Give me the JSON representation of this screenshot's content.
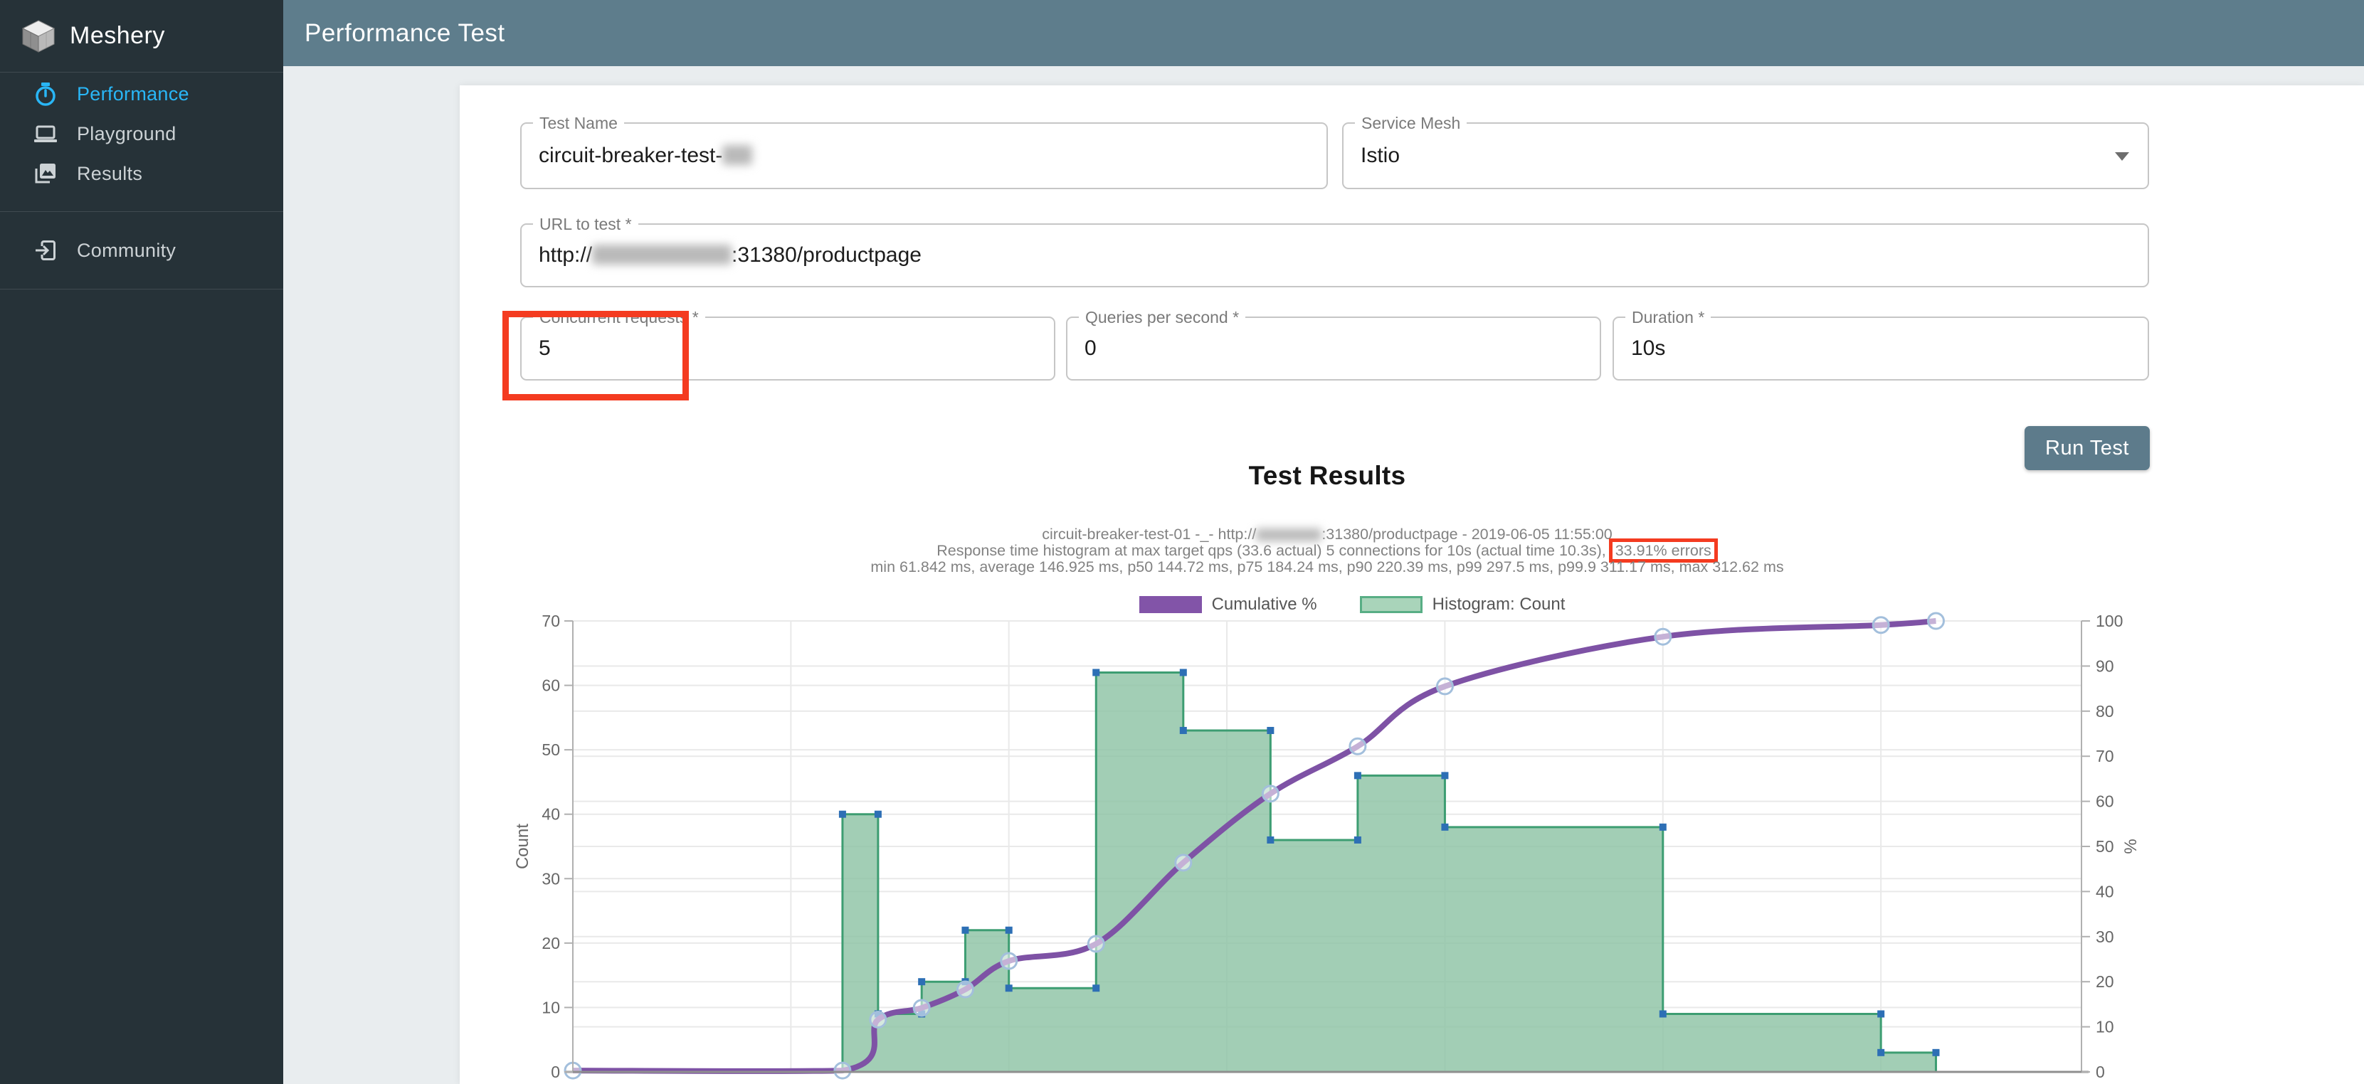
{
  "app": {
    "brand": "Meshery",
    "page_title": "Performance Test"
  },
  "sidebar": {
    "items": [
      {
        "label": "Performance",
        "active": true
      },
      {
        "label": "Playground",
        "active": false
      },
      {
        "label": "Results",
        "active": false
      },
      {
        "label": "Community",
        "active": false
      }
    ]
  },
  "header": {
    "icons": [
      "settings-gear",
      "notifications-bell",
      "user-avatar"
    ]
  },
  "form": {
    "test_name": {
      "label": "Test Name",
      "value_prefix": "circuit-breaker-test-",
      "value_suffix_redacted": true
    },
    "service_mesh": {
      "label": "Service Mesh",
      "value": "Istio"
    },
    "url": {
      "label": "URL to test *",
      "value_prefix": "http://",
      "host_redacted": true,
      "value_suffix": ":31380/productpage"
    },
    "concurrent_requests": {
      "label": "Concurrent requests *",
      "value": "5",
      "annotated": true
    },
    "queries_per_second": {
      "label": "Queries per second *",
      "value": "0"
    },
    "duration": {
      "label": "Duration *",
      "value": "10s"
    },
    "run_button_label": "Run Test"
  },
  "results": {
    "title": "Test Results",
    "summary_line1_prefix": "circuit-breaker-test-01 -_- http://",
    "summary_line1_suffix": ":31380/productpage - 2019-06-05 11:55:00",
    "summary_line2": "Response time histogram at max target qps (33.6 actual) 5 connections for 10s (actual time 10.3s),",
    "summary_line2_highlight": "33.91% errors",
    "summary_line3": "min 61.842 ms, average 146.925 ms, p50 144.72 ms, p75 184.24 ms, p90 220.39 ms, p99 297.5 ms, p99.9 311.17 ms, max 312.62 ms"
  },
  "chart_data": {
    "type": "histogram+cumulative-line",
    "x_axis": {
      "unit": "ms",
      "min": 0,
      "max": 346,
      "gridline_step": 50,
      "tick_labels_visible": false
    },
    "left_axis": {
      "label": "Count",
      "min": 0,
      "max": 70,
      "ticks": [
        0,
        10,
        20,
        30,
        40,
        50,
        60,
        70
      ]
    },
    "right_axis": {
      "label": "%",
      "min": 0,
      "max": 100,
      "ticks": [
        0,
        10,
        20,
        30,
        40,
        50,
        60,
        70,
        80,
        90,
        100
      ]
    },
    "buckets": {
      "edges_ms": [
        61.842,
        70,
        80,
        90,
        100,
        120,
        140,
        160,
        180,
        200,
        250,
        300,
        312.62
      ],
      "counts": [
        40,
        9,
        14,
        22,
        13,
        62,
        53,
        36,
        46,
        38,
        9,
        3
      ]
    },
    "cumulative": {
      "x_ms": [
        0,
        61.842,
        70,
        80,
        90,
        100,
        120,
        140,
        160,
        180,
        200,
        250,
        300,
        312.62
      ],
      "pct": [
        0.3,
        0.3,
        11.6,
        14.2,
        18.3,
        24.6,
        28.4,
        46.4,
        61.7,
        72.2,
        85.5,
        96.5,
        99.1,
        100
      ]
    },
    "series": [
      {
        "name": "Cumulative %",
        "color": "#7e52a5"
      },
      {
        "name": "Histogram: Count",
        "fill": "#8dc3a5",
        "stroke": "#3d9d72",
        "legend_fill": "#a9d4ba",
        "legend_stroke": "#58ae85"
      }
    ],
    "colors": {
      "grid": "#e9e9e9",
      "axis": "#b0b0b0",
      "bottom_axis": "#8f8f8f",
      "tick_text": "#666666",
      "marker_square": "#2d6fb5",
      "marker_circle_stroke": "#a3bfdc"
    },
    "legend_position": "top-center"
  },
  "annotations": {
    "red_box_color": "#f43b20"
  }
}
